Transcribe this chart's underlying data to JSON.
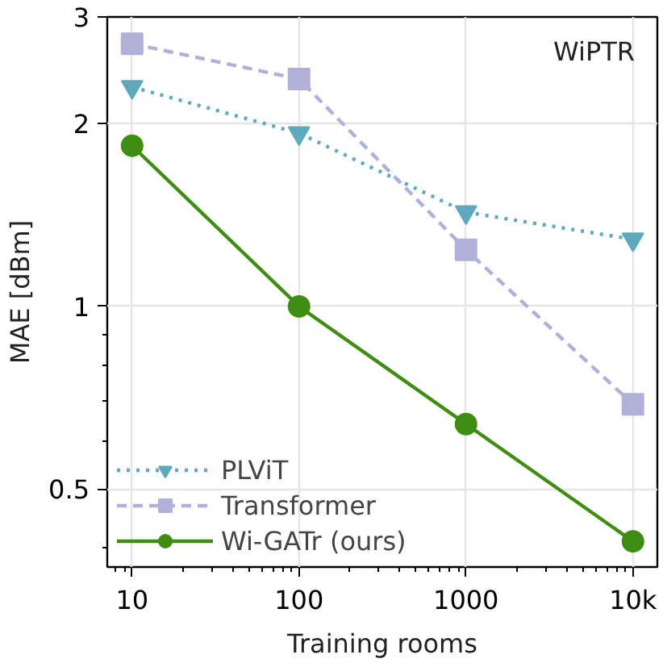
{
  "chart_data": {
    "type": "line",
    "xlabel": "Training rooms",
    "ylabel": "MAE [dBm]",
    "log": "xy",
    "grid": true,
    "legend": "bottom left",
    "annotations": [
      "WiPTR"
    ],
    "x": [
      10,
      100,
      1000,
      10000
    ],
    "xlim": [
      7.1,
      14000
    ],
    "ylim": [
      0.372,
      3.0
    ],
    "xticks": [
      10,
      100,
      1000,
      {
        "value": 10000,
        "label": "10k"
      }
    ],
    "yticks": [
      0.5,
      1,
      2,
      3
    ],
    "series": [
      {
        "name": "PLViT",
        "color": "#5ea9bb",
        "marker": "triangle",
        "line_style": "dotted",
        "values": [
          2.3,
          1.93,
          1.43,
          1.29
        ]
      },
      {
        "name": "Transformer",
        "color": "#b1b0d9",
        "marker": "square",
        "line_style": "dashed",
        "values": [
          2.71,
          2.37,
          1.24,
          0.69
        ]
      },
      {
        "name": "Wi-GATr (ours)",
        "color": "#3f8d12",
        "marker": "circle",
        "line_style": "solid",
        "values": [
          1.84,
          1.0,
          0.64,
          0.41
        ]
      }
    ]
  }
}
